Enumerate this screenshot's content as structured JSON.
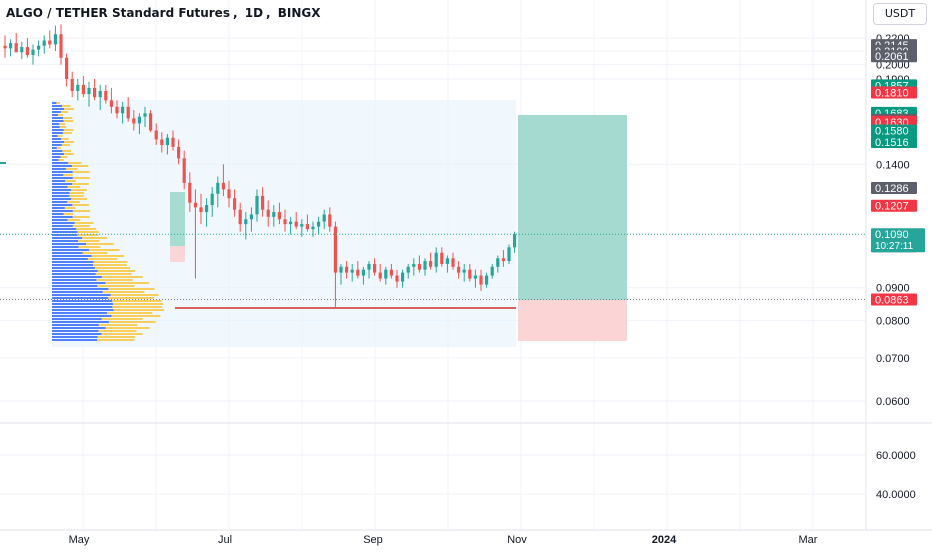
{
  "header": {
    "symbol": "ALGO / TETHER Standard Futures",
    "interval": "1D",
    "exchange": "BINGX"
  },
  "currency_button": "USDT",
  "colors": {
    "up": "#26a69a",
    "down": "#ef5350",
    "vp_blue": "#2962ff",
    "vp_yellow": "#f7c948",
    "range_bg": "#e3f2fd",
    "poc_line": "#d32f2f",
    "profit_zone": "#9fd8cc",
    "loss_zone": "#fbd2d4",
    "label_gray": "#787b86",
    "label_dark": "#5d606b",
    "label_green": "#089981",
    "label_red": "#f23645"
  },
  "chart_data": [
    {
      "type": "candlestick",
      "title": "ALGO / TETHER Standard Futures, 1D, BINGX",
      "ylim": [
        0.055,
        0.235
      ],
      "y_scale": "log",
      "y_ticks": [
        "0.2200",
        "0.2100",
        "0.2000",
        "0.1900",
        "0.1400",
        "0.0900",
        "0.0800",
        "0.0700",
        "0.0600"
      ],
      "x_ticks": [
        "May",
        "Jul",
        "Sep",
        "Nov",
        "2024",
        "Mar"
      ],
      "price_labels": [
        {
          "text": "0.2145",
          "style": "gray"
        },
        {
          "text": "0.2100",
          "style": "gray"
        },
        {
          "text": "0.2061",
          "style": "gray"
        },
        {
          "text": "0.1857",
          "style": "green"
        },
        {
          "text": "0.1810",
          "style": "red"
        },
        {
          "text": "0.1683",
          "style": "green"
        },
        {
          "text": "0.1642",
          "style": "gray"
        },
        {
          "text": "0.1630",
          "style": "red"
        },
        {
          "text": "0.1580",
          "style": "green"
        },
        {
          "text": "0.1516",
          "style": "green"
        },
        {
          "text": "0.1286",
          "style": "gray"
        },
        {
          "text": "0.1207",
          "style": "red"
        },
        {
          "text": "0.1044",
          "style": "gray"
        },
        {
          "text": "0.0863",
          "style": "red"
        }
      ],
      "last_price": {
        "value": "0.1090",
        "countdown": "10:27:11"
      },
      "candles": [
        [
          0.214,
          0.222,
          0.205,
          0.212
        ],
        [
          0.212,
          0.219,
          0.206,
          0.216
        ],
        [
          0.216,
          0.224,
          0.21,
          0.209
        ],
        [
          0.209,
          0.217,
          0.204,
          0.213
        ],
        [
          0.213,
          0.22,
          0.205,
          0.207
        ],
        [
          0.207,
          0.215,
          0.2,
          0.211
        ],
        [
          0.211,
          0.218,
          0.206,
          0.214
        ],
        [
          0.214,
          0.222,
          0.208,
          0.218
        ],
        [
          0.218,
          0.226,
          0.212,
          0.215
        ],
        [
          0.215,
          0.23,
          0.21,
          0.223
        ],
        [
          0.223,
          0.231,
          0.2,
          0.205
        ],
        [
          0.205,
          0.208,
          0.185,
          0.19
        ],
        [
          0.19,
          0.195,
          0.178,
          0.182
        ],
        [
          0.182,
          0.19,
          0.176,
          0.186
        ],
        [
          0.186,
          0.192,
          0.178,
          0.18
        ],
        [
          0.18,
          0.188,
          0.172,
          0.184
        ],
        [
          0.184,
          0.19,
          0.176,
          0.178
        ],
        [
          0.178,
          0.186,
          0.17,
          0.182
        ],
        [
          0.182,
          0.186,
          0.174,
          0.176
        ],
        [
          0.176,
          0.184,
          0.168,
          0.172
        ],
        [
          0.172,
          0.176,
          0.165,
          0.168
        ],
        [
          0.168,
          0.175,
          0.162,
          0.172
        ],
        [
          0.172,
          0.178,
          0.163,
          0.165
        ],
        [
          0.165,
          0.17,
          0.158,
          0.162
        ],
        [
          0.162,
          0.168,
          0.156,
          0.166
        ],
        [
          0.166,
          0.172,
          0.16,
          0.168
        ],
        [
          0.168,
          0.17,
          0.157,
          0.158
        ],
        [
          0.158,
          0.162,
          0.15,
          0.153
        ],
        [
          0.153,
          0.157,
          0.146,
          0.15
        ],
        [
          0.15,
          0.156,
          0.145,
          0.154
        ],
        [
          0.154,
          0.158,
          0.147,
          0.149
        ],
        [
          0.149,
          0.153,
          0.14,
          0.143
        ],
        [
          0.143,
          0.147,
          0.128,
          0.131
        ],
        [
          0.131,
          0.136,
          0.118,
          0.122
        ],
        [
          0.122,
          0.128,
          0.093,
          0.12
        ],
        [
          0.12,
          0.126,
          0.113,
          0.118
        ],
        [
          0.118,
          0.124,
          0.112,
          0.121
        ],
        [
          0.121,
          0.129,
          0.116,
          0.126
        ],
        [
          0.126,
          0.134,
          0.12,
          0.131
        ],
        [
          0.131,
          0.14,
          0.125,
          0.128
        ],
        [
          0.128,
          0.132,
          0.12,
          0.124
        ],
        [
          0.124,
          0.128,
          0.116,
          0.119
        ],
        [
          0.119,
          0.122,
          0.11,
          0.113
        ],
        [
          0.113,
          0.118,
          0.107,
          0.115
        ],
        [
          0.115,
          0.12,
          0.11,
          0.117
        ],
        [
          0.117,
          0.128,
          0.114,
          0.125
        ],
        [
          0.125,
          0.129,
          0.116,
          0.119
        ],
        [
          0.119,
          0.123,
          0.112,
          0.116
        ],
        [
          0.116,
          0.121,
          0.112,
          0.118
        ],
        [
          0.118,
          0.122,
          0.113,
          0.115
        ],
        [
          0.115,
          0.119,
          0.11,
          0.113
        ],
        [
          0.113,
          0.116,
          0.109,
          0.114
        ],
        [
          0.114,
          0.118,
          0.111,
          0.112
        ],
        [
          0.112,
          0.115,
          0.108,
          0.113
        ],
        [
          0.113,
          0.117,
          0.11,
          0.111
        ],
        [
          0.111,
          0.114,
          0.108,
          0.112
        ],
        [
          0.112,
          0.116,
          0.109,
          0.114
        ],
        [
          0.114,
          0.119,
          0.111,
          0.117
        ],
        [
          0.117,
          0.12,
          0.11,
          0.112
        ],
        [
          0.112,
          0.114,
          0.084,
          0.095
        ],
        [
          0.095,
          0.098,
          0.091,
          0.097
        ],
        [
          0.097,
          0.099,
          0.093,
          0.095
        ],
        [
          0.095,
          0.098,
          0.092,
          0.096
        ],
        [
          0.096,
          0.099,
          0.093,
          0.094
        ],
        [
          0.094,
          0.097,
          0.091,
          0.096
        ],
        [
          0.096,
          0.099,
          0.093,
          0.098
        ],
        [
          0.098,
          0.1,
          0.094,
          0.095
        ],
        [
          0.095,
          0.098,
          0.092,
          0.093
        ],
        [
          0.093,
          0.097,
          0.091,
          0.096
        ],
        [
          0.096,
          0.098,
          0.093,
          0.094
        ],
        [
          0.094,
          0.096,
          0.09,
          0.092
        ],
        [
          0.092,
          0.096,
          0.09,
          0.095
        ],
        [
          0.095,
          0.098,
          0.093,
          0.097
        ],
        [
          0.097,
          0.1,
          0.094,
          0.098
        ],
        [
          0.098,
          0.101,
          0.095,
          0.096
        ],
        [
          0.096,
          0.1,
          0.094,
          0.099
        ],
        [
          0.099,
          0.102,
          0.096,
          0.097
        ],
        [
          0.097,
          0.104,
          0.095,
          0.102
        ],
        [
          0.102,
          0.104,
          0.097,
          0.098
        ],
        [
          0.098,
          0.101,
          0.095,
          0.1
        ],
        [
          0.1,
          0.102,
          0.096,
          0.097
        ],
        [
          0.097,
          0.099,
          0.093,
          0.095
        ],
        [
          0.095,
          0.098,
          0.092,
          0.096
        ],
        [
          0.096,
          0.098,
          0.092,
          0.093
        ],
        [
          0.093,
          0.096,
          0.09,
          0.094
        ],
        [
          0.094,
          0.096,
          0.089,
          0.091
        ],
        [
          0.091,
          0.095,
          0.09,
          0.094
        ],
        [
          0.094,
          0.098,
          0.093,
          0.097
        ],
        [
          0.097,
          0.101,
          0.095,
          0.1
        ],
        [
          0.1,
          0.103,
          0.097,
          0.099
        ],
        [
          0.099,
          0.105,
          0.098,
          0.104
        ],
        [
          0.104,
          0.11,
          0.102,
          0.109
        ]
      ],
      "rsi_panel": {
        "y_ticks": [
          "60.0000",
          "40.0000"
        ]
      }
    }
  ]
}
